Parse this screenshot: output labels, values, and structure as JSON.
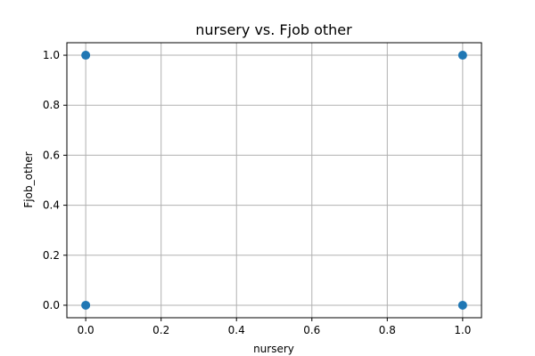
{
  "chart_data": {
    "type": "scatter",
    "title": "nursery vs. Fjob other",
    "xlabel": "nursery",
    "ylabel": "Fjob_other",
    "xlim": [
      -0.05,
      1.05
    ],
    "ylim": [
      -0.05,
      1.05
    ],
    "xticks": [
      "0.0",
      "0.2",
      "0.4",
      "0.6",
      "0.8",
      "1.0"
    ],
    "yticks": [
      "0.0",
      "0.2",
      "0.4",
      "0.6",
      "0.8",
      "1.0"
    ],
    "grid": true,
    "points": [
      {
        "x": 0,
        "y": 0
      },
      {
        "x": 0,
        "y": 1
      },
      {
        "x": 1,
        "y": 0
      },
      {
        "x": 1,
        "y": 1
      }
    ],
    "colors": {
      "marker": "#1f77b4",
      "grid": "#b0b0b0",
      "axis": "#000000"
    }
  }
}
